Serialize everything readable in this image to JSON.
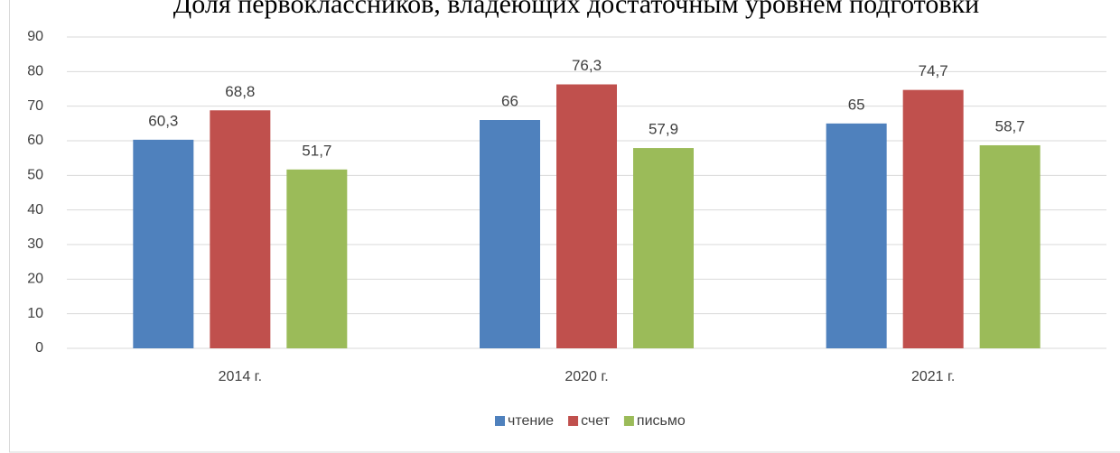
{
  "chart_data": {
    "type": "bar",
    "title": "Доля первоклассников, владеющих достаточным уровнем подготовки",
    "categories": [
      "2014 г.",
      "2020 г.",
      "2021 г."
    ],
    "series": [
      {
        "name": "чтение",
        "color": "#4f81bd",
        "values": [
          60.3,
          66,
          65
        ],
        "value_labels": [
          "60,3",
          "66",
          "65"
        ]
      },
      {
        "name": "счет",
        "color": "#c0504d",
        "values": [
          68.8,
          76.3,
          74.7
        ],
        "value_labels": [
          "68,8",
          "76,3",
          "74,7"
        ]
      },
      {
        "name": "письмо",
        "color": "#9bbb59",
        "values": [
          51.7,
          57.9,
          58.7
        ],
        "value_labels": [
          "51,7",
          "57,9",
          "58,7"
        ]
      }
    ],
    "ylim": [
      0,
      90
    ],
    "yticks": [
      0,
      10,
      20,
      30,
      40,
      50,
      60,
      70,
      80,
      90
    ],
    "grid": true,
    "legend": "bottom"
  }
}
